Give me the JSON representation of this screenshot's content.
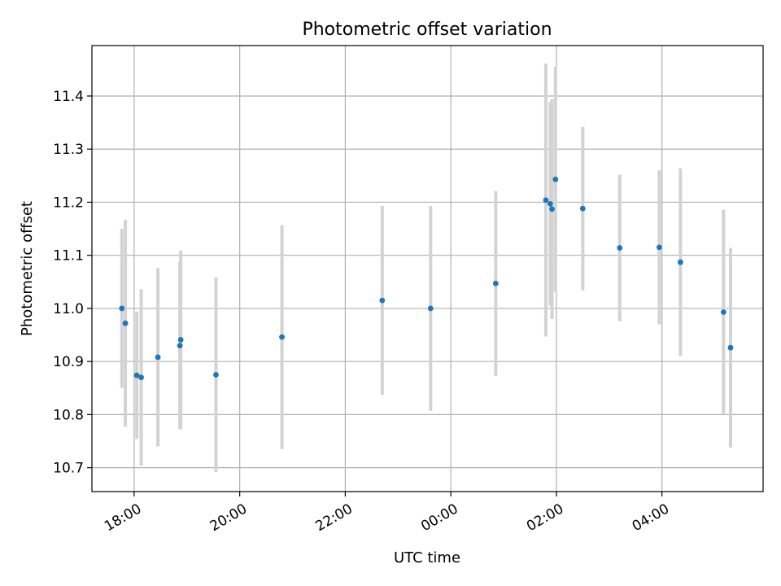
{
  "chart_data": {
    "type": "scatter",
    "title": "Photometric offset variation",
    "xlabel": "UTC time",
    "ylabel": "Photometric offset",
    "grid": true,
    "xlim": [
      "17:12",
      "05:55 +1d"
    ],
    "ylim": [
      10.655,
      11.495
    ],
    "x_ticks": [
      "18:00",
      "20:00",
      "22:00",
      "00:00",
      "02:00",
      "04:00"
    ],
    "y_ticks": [
      "10.7",
      "10.8",
      "10.9",
      "11.0",
      "11.1",
      "11.2",
      "11.3",
      "11.4"
    ],
    "error_bar_color": "#d3d3d3",
    "marker_color": "#1f77b4",
    "points": [
      {
        "time": "17:46",
        "y": 11.0,
        "err": 0.15
      },
      {
        "time": "17:50",
        "y": 10.972,
        "err": 0.195
      },
      {
        "time": "18:03",
        "y": 10.874,
        "err": 0.12
      },
      {
        "time": "18:08",
        "y": 10.87,
        "err": 0.166
      },
      {
        "time": "18:27",
        "y": 10.908,
        "err": 0.168
      },
      {
        "time": "18:52",
        "y": 10.93,
        "err": 0.158
      },
      {
        "time": "18:53",
        "y": 10.941,
        "err": 0.168
      },
      {
        "time": "19:33",
        "y": 10.875,
        "err": 0.183
      },
      {
        "time": "20:48",
        "y": 10.946,
        "err": 0.211
      },
      {
        "time": "22:42",
        "y": 11.015,
        "err": 0.178
      },
      {
        "time": "23:37",
        "y": 11.0,
        "err": 0.193
      },
      {
        "time": "00:51",
        "y": 11.047,
        "err": 0.174
      },
      {
        "time": "01:48",
        "y": 11.204,
        "err": 0.257
      },
      {
        "time": "01:53",
        "y": 11.197,
        "err": 0.192
      },
      {
        "time": "01:55",
        "y": 11.187,
        "err": 0.207
      },
      {
        "time": "01:59",
        "y": 11.243,
        "err": 0.212
      },
      {
        "time": "02:30",
        "y": 11.188,
        "err": 0.154
      },
      {
        "time": "03:12",
        "y": 11.114,
        "err": 0.138
      },
      {
        "time": "03:57",
        "y": 11.115,
        "err": 0.145
      },
      {
        "time": "04:21",
        "y": 11.087,
        "err": 0.177
      },
      {
        "time": "05:10",
        "y": 10.993,
        "err": 0.193
      },
      {
        "time": "05:18",
        "y": 10.926,
        "err": 0.188
      }
    ]
  }
}
